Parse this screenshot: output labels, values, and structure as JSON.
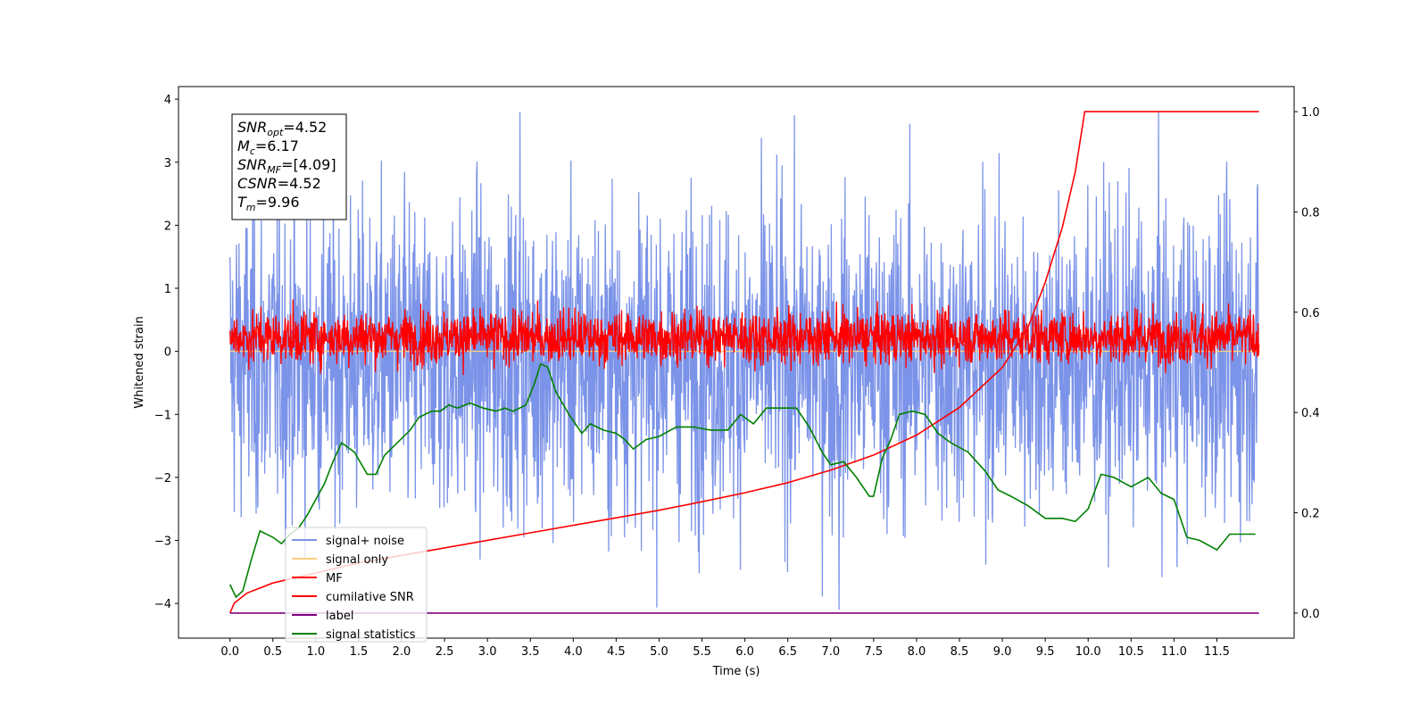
{
  "chart_data": {
    "type": "line",
    "xlabel": "Time (s)",
    "ylabel": "Whitened strain",
    "xlim": [
      -0.6,
      12.4
    ],
    "ylim": [
      -4.55,
      4.2
    ],
    "y2lim": [
      -0.05,
      1.05
    ],
    "x_ticks": [
      "0.0",
      "0.5",
      "1.0",
      "1.5",
      "2.0",
      "2.5",
      "3.0",
      "3.5",
      "4.0",
      "4.5",
      "5.0",
      "5.5",
      "6.0",
      "6.5",
      "7.0",
      "7.5",
      "8.0",
      "8.5",
      "9.0",
      "9.5",
      "10.0",
      "10.5",
      "11.0",
      "11.5"
    ],
    "y_ticks": [
      "4",
      "3",
      "2",
      "1",
      "0",
      "−1",
      "−2",
      "−3",
      "−4"
    ],
    "y2_ticks": [
      "1.0",
      "0.8",
      "0.6",
      "0.4",
      "0.2",
      "0.0"
    ],
    "legend_position": "lower-left",
    "stats_box": [
      {
        "base": "SNR",
        "sub": "opt",
        "value": "=4.52"
      },
      {
        "base": "M",
        "sub": "c",
        "value": "=6.17"
      },
      {
        "base": "SNR",
        "sub": "MF",
        "value": "=[4.09]"
      },
      {
        "base": "CSNR",
        "sub": "",
        "value": "=4.52"
      },
      {
        "base": "T",
        "sub": "m",
        "value": "=9.96"
      }
    ],
    "series": [
      {
        "name": "signal+ noise",
        "color": "#7b93e8",
        "axis": "left",
        "kind": "noise",
        "t_range": [
          0,
          11.99
        ],
        "amplitude_range": [
          -4.1,
          3.8
        ],
        "peak_positive": 3.8,
        "peak_negative": -4.1
      },
      {
        "name": "signal only",
        "color": "#ffcf7f",
        "axis": "left",
        "kind": "flat",
        "t_range": [
          0,
          11.99
        ],
        "value": 0
      },
      {
        "name": "MF",
        "color": "#ff0000",
        "axis": "left",
        "kind": "noise",
        "t_range": [
          0,
          11.99
        ],
        "amplitude_range": [
          -0.45,
          0.9
        ]
      },
      {
        "name": "cumilative SNR",
        "color": "#ff0000",
        "axis": "right",
        "kind": "line",
        "x": [
          0.0,
          0.05,
          0.2,
          0.5,
          1.0,
          1.5,
          2.0,
          2.5,
          3.0,
          3.5,
          4.0,
          4.5,
          5.0,
          5.5,
          6.0,
          6.5,
          7.0,
          7.5,
          8.0,
          8.5,
          9.0,
          9.3,
          9.5,
          9.7,
          9.85,
          9.96,
          10.5,
          11.0,
          11.5,
          11.99
        ],
        "values": [
          0.0,
          0.02,
          0.04,
          0.06,
          0.08,
          0.1,
          0.115,
          0.13,
          0.145,
          0.16,
          0.175,
          0.19,
          0.205,
          0.222,
          0.24,
          0.26,
          0.285,
          0.315,
          0.355,
          0.41,
          0.49,
          0.57,
          0.66,
          0.77,
          0.88,
          1.0,
          1.0,
          1.0,
          1.0,
          1.0
        ]
      },
      {
        "name": "label",
        "color": "#800080",
        "axis": "right",
        "kind": "line",
        "x": [
          0.0,
          11.99
        ],
        "values": [
          0.0,
          0.0
        ]
      },
      {
        "name": "signal statistics",
        "color": "#008000",
        "axis": "left",
        "kind": "line",
        "x": [
          0.0,
          0.07,
          0.15,
          0.25,
          0.35,
          0.5,
          0.6,
          0.7,
          0.8,
          0.9,
          1.0,
          1.1,
          1.2,
          1.3,
          1.45,
          1.6,
          1.7,
          1.8,
          1.95,
          2.1,
          2.2,
          2.35,
          2.45,
          2.55,
          2.65,
          2.8,
          2.95,
          3.1,
          3.2,
          3.3,
          3.45,
          3.55,
          3.62,
          3.7,
          3.8,
          3.95,
          4.1,
          4.2,
          4.35,
          4.5,
          4.6,
          4.7,
          4.85,
          5.0,
          5.2,
          5.4,
          5.6,
          5.8,
          5.95,
          6.1,
          6.25,
          6.4,
          6.6,
          6.75,
          6.9,
          7.0,
          7.15,
          7.3,
          7.45,
          7.5,
          7.6,
          7.7,
          7.8,
          7.95,
          8.1,
          8.25,
          8.4,
          8.6,
          8.8,
          8.95,
          9.1,
          9.3,
          9.5,
          9.7,
          9.85,
          10.0,
          10.15,
          10.3,
          10.5,
          10.7,
          10.85,
          11.0,
          11.15,
          11.3,
          11.5,
          11.65,
          11.8,
          11.95
        ],
        "values": [
          -3.7,
          -3.9,
          -3.8,
          -3.3,
          -2.85,
          -2.95,
          -3.05,
          -2.9,
          -2.8,
          -2.6,
          -2.35,
          -2.1,
          -1.75,
          -1.45,
          -1.6,
          -1.95,
          -1.95,
          -1.65,
          -1.45,
          -1.25,
          -1.05,
          -0.95,
          -0.95,
          -0.85,
          -0.9,
          -0.82,
          -0.9,
          -0.95,
          -0.9,
          -0.95,
          -0.85,
          -0.5,
          -0.2,
          -0.25,
          -0.65,
          -1.0,
          -1.3,
          -1.15,
          -1.25,
          -1.3,
          -1.4,
          -1.55,
          -1.4,
          -1.35,
          -1.2,
          -1.2,
          -1.25,
          -1.25,
          -1.0,
          -1.15,
          -0.9,
          -0.9,
          -0.9,
          -1.2,
          -1.6,
          -1.8,
          -1.75,
          -2.0,
          -2.3,
          -2.3,
          -1.7,
          -1.4,
          -1.0,
          -0.95,
          -1.0,
          -1.3,
          -1.45,
          -1.6,
          -1.9,
          -2.2,
          -2.3,
          -2.45,
          -2.65,
          -2.65,
          -2.7,
          -2.5,
          -1.95,
          -2.0,
          -2.15,
          -2.0,
          -2.25,
          -2.35,
          -2.95,
          -3.0,
          -3.15,
          -2.9,
          -2.9,
          -2.9
        ]
      }
    ]
  }
}
